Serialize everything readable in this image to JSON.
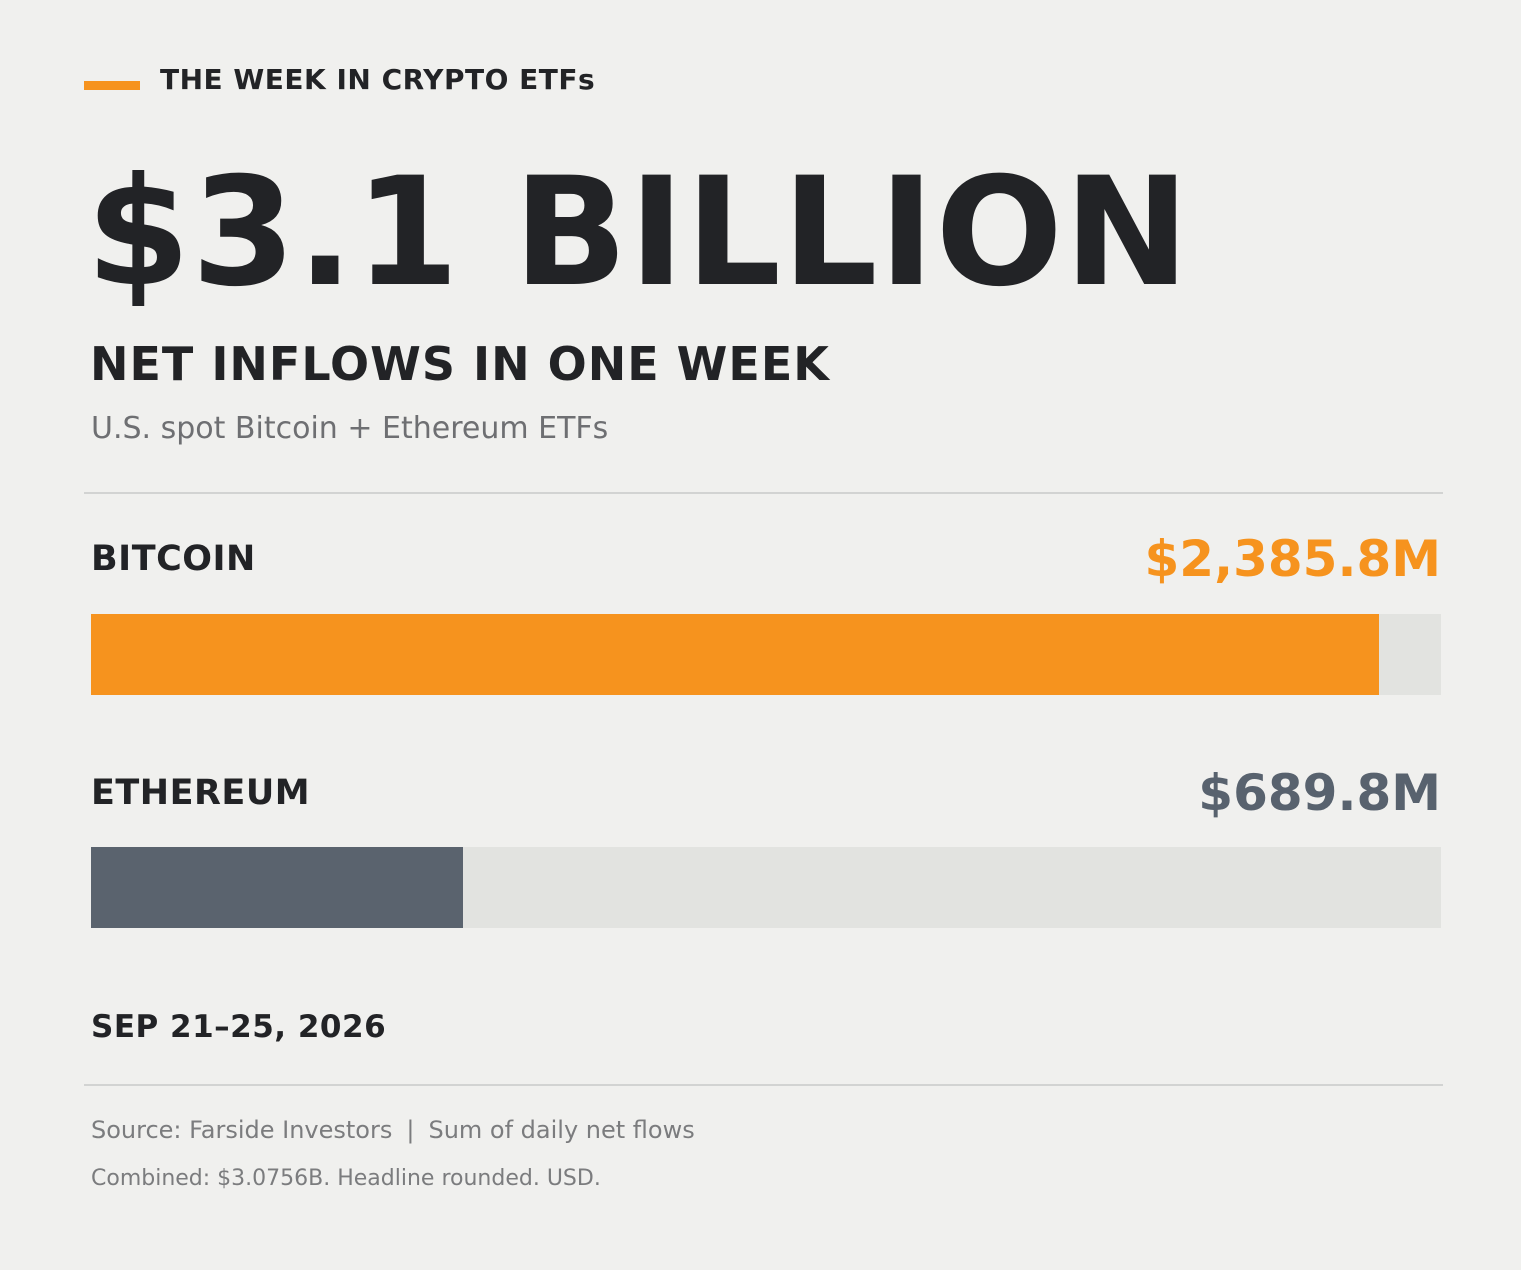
{
  "header": {
    "kicker": "THE WEEK IN CRYPTO ETFs",
    "headline": "$3.1 BILLION",
    "subhead": "NET INFLOWS IN ONE WEEK",
    "scope": "U.S. spot Bitcoin + Ethereum ETFs"
  },
  "rows": [
    {
      "label": "BITCOIN",
      "value_text": "$2,385.8M"
    },
    {
      "label": "ETHEREUM",
      "value_text": "$689.8M"
    }
  ],
  "date_range": "SEP 21–25, 2026",
  "footer": {
    "source": "Source: Farside Investors",
    "separator": "|",
    "method": "Sum of daily net flows",
    "note": "Combined: $3.0756B. Headline rounded. USD."
  },
  "colors": {
    "accent": "#f6931e",
    "ethereum": "#5a636e",
    "track": "#e2e3e0",
    "background": "#f0f0ee"
  },
  "chart_data": {
    "type": "bar",
    "orientation": "horizontal",
    "categories": [
      "BITCOIN",
      "ETHEREUM"
    ],
    "values": [
      2385.8,
      689.8
    ],
    "unit": "$M",
    "xlim": [
      0,
      2500
    ]
  }
}
